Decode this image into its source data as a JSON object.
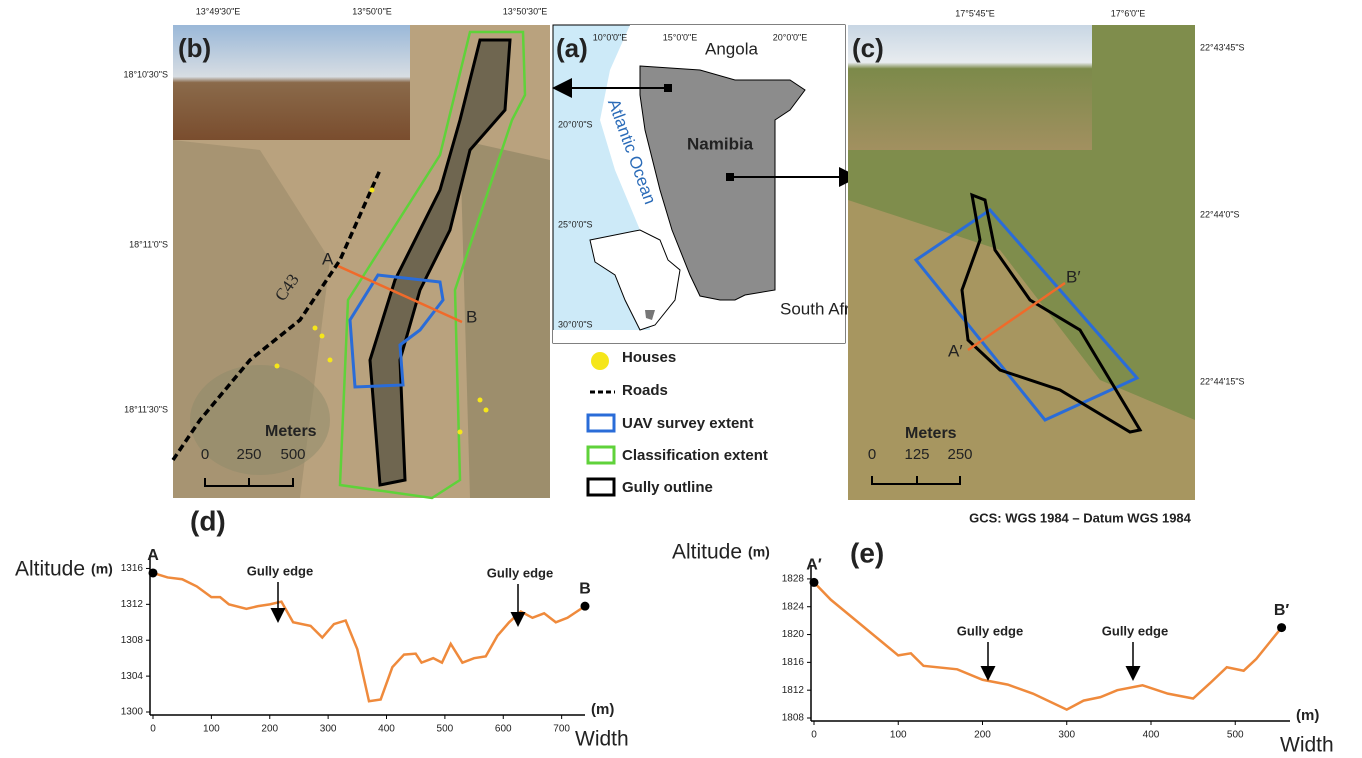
{
  "maps": {
    "panel_b": {
      "label": "(b)",
      "lon_labels": [
        "13°49'30\"E",
        "13°50'0\"E",
        "13°50'30\"E"
      ],
      "lat_labels": [
        "18°10'30\"S",
        "18°11'0\"S",
        "18°11'30\"S"
      ],
      "road": "C43",
      "points": [
        "A",
        "B"
      ],
      "scale_title": "Meters",
      "scale_ticks": [
        0,
        250,
        500
      ]
    },
    "panel_a": {
      "label": "(a)",
      "lon_labels": [
        "10°0'0\"E",
        "15°0'0\"E",
        "20°0'0\"E"
      ],
      "lat_labels": [
        "20°0'0\"S",
        "25°0'0\"S",
        "30°0'0\"S"
      ],
      "places": [
        "Angola",
        "Atlantic Ocean",
        "Namibia",
        "South Africa"
      ]
    },
    "legend": [
      "Houses",
      "Roads",
      "UAV survey extent",
      "Classification extent",
      "Gully outline"
    ],
    "panel_c": {
      "label": "(c)",
      "lon_labels": [
        "17°5'45\"E",
        "17°6'0\"E"
      ],
      "lat_labels": [
        "22°43'45\"S",
        "22°44'0\"S",
        "22°44'15\"S"
      ],
      "points": [
        "A′",
        "B′"
      ],
      "scale_title": "Meters",
      "scale_ticks": [
        0,
        125,
        250
      ]
    },
    "datum": "GCS: WGS 1984 – Datum WGS 1984"
  },
  "chart_data": [
    {
      "type": "line",
      "label": "(d)",
      "y_label": "Altitude",
      "y_unit": "(m)",
      "x_unit": "(m)",
      "x_label": "Width",
      "annotations": [
        "Gully edge",
        "Gully edge"
      ],
      "endpoints": [
        "A",
        "B"
      ],
      "color": "#ef8a3c",
      "x": [
        0,
        25,
        50,
        75,
        100,
        115,
        130,
        160,
        180,
        200,
        220,
        240,
        270,
        290,
        310,
        330,
        350,
        370,
        390,
        410,
        430,
        450,
        460,
        480,
        495,
        510,
        530,
        550,
        570,
        590,
        610,
        630,
        650,
        670,
        690,
        710,
        740
      ],
      "values": [
        1315.5,
        1315,
        1314.8,
        1314,
        1312.8,
        1312.8,
        1312,
        1311.5,
        1311.8,
        1312,
        1312.3,
        1310,
        1309.6,
        1308.3,
        1309.8,
        1310.2,
        1307,
        1301.2,
        1301.4,
        1305,
        1306.4,
        1306.5,
        1305.5,
        1306,
        1305.5,
        1307.6,
        1305.5,
        1306,
        1306.2,
        1308.5,
        1310,
        1311.2,
        1310.5,
        1311,
        1310,
        1310.5,
        1311.8
      ],
      "xlim": [
        0,
        740
      ],
      "ylim": [
        1300,
        1317.5
      ],
      "xticks": [
        0,
        100,
        200,
        300,
        400,
        500,
        600,
        700
      ],
      "yticks": [
        1300,
        1304,
        1308,
        1312,
        1316
      ]
    },
    {
      "type": "line",
      "label": "(e)",
      "y_label": "Altitude",
      "y_unit": "(m)",
      "x_unit": "(m)",
      "x_label": "Width",
      "annotations": [
        "Gully edge",
        "Gully edge"
      ],
      "endpoints": [
        "A′",
        "B′"
      ],
      "color": "#ef8a3c",
      "x": [
        0,
        20,
        50,
        80,
        100,
        115,
        130,
        170,
        200,
        230,
        260,
        300,
        320,
        340,
        360,
        390,
        420,
        450,
        470,
        490,
        510,
        525,
        555
      ],
      "values": [
        1827.5,
        1825,
        1822,
        1819,
        1817,
        1817.3,
        1815.5,
        1815,
        1813.5,
        1812.8,
        1811.5,
        1809.2,
        1810.5,
        1811,
        1812,
        1812.7,
        1811.5,
        1810.8,
        1813,
        1815.3,
        1814.8,
        1816.5,
        1821
      ],
      "xlim": [
        0,
        565
      ],
      "ylim": [
        1808,
        1830
      ],
      "xticks": [
        0,
        100,
        200,
        300,
        400,
        500
      ],
      "yticks": [
        1808,
        1812,
        1816,
        1820,
        1824,
        1828
      ]
    }
  ]
}
